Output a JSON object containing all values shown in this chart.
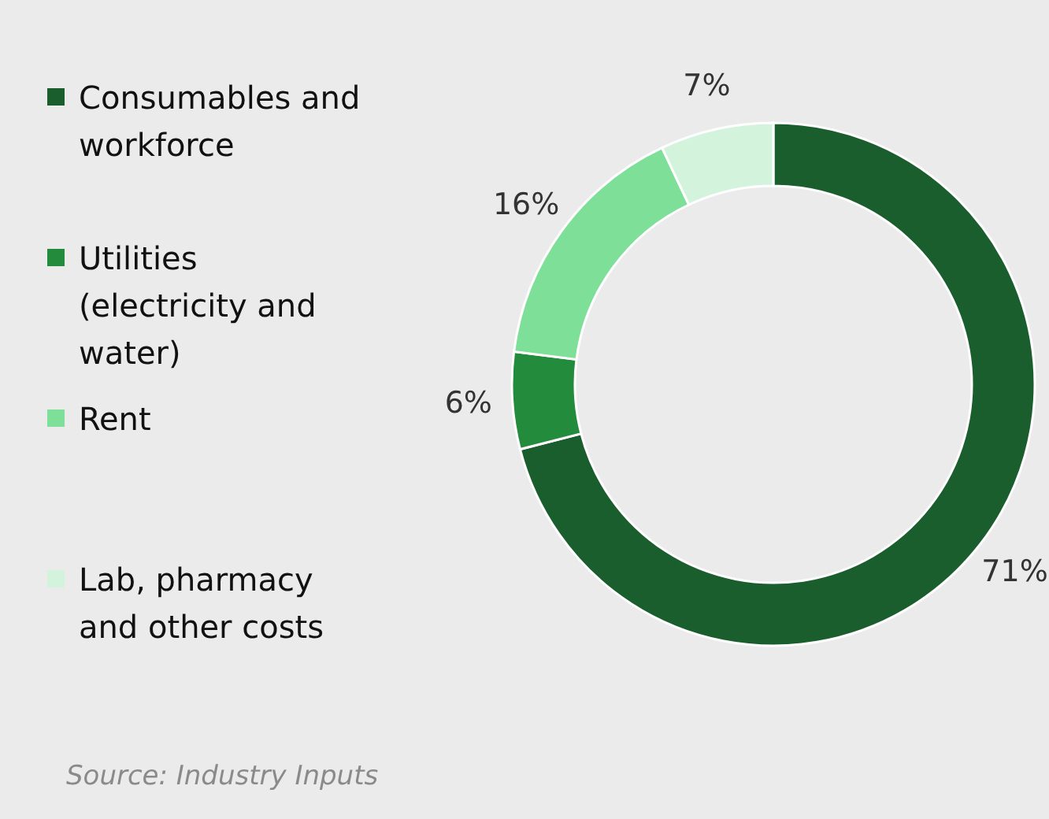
{
  "chart_data": {
    "type": "donut",
    "categories": [
      "Consumables and workforce",
      "Utilities (electricity and water)",
      "Rent",
      "Lab, pharmacy and other costs"
    ],
    "values": [
      71,
      6,
      16,
      7
    ],
    "value_labels": [
      "71%",
      "6%",
      "16%",
      "7%"
    ],
    "colors": [
      "#1a5e2e",
      "#228c3c",
      "#7ddf98",
      "#d3f3dc"
    ],
    "legend": "left",
    "annotations": [
      "Source: Industry Inputs"
    ]
  }
}
